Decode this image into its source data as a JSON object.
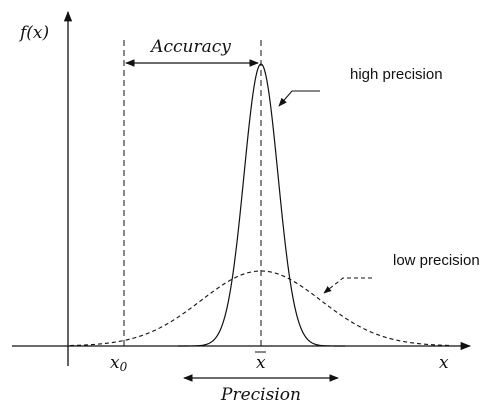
{
  "diagram": {
    "y_axis_label": "f(x)",
    "x_axis_label": "x",
    "x0_label": "x",
    "x0_subscript": "0",
    "xbar_label": "x",
    "accuracy_label": "Accuracy",
    "precision_label": "Precision",
    "high_precision_label": "high precision",
    "low_precision_label": "low precision"
  }
}
